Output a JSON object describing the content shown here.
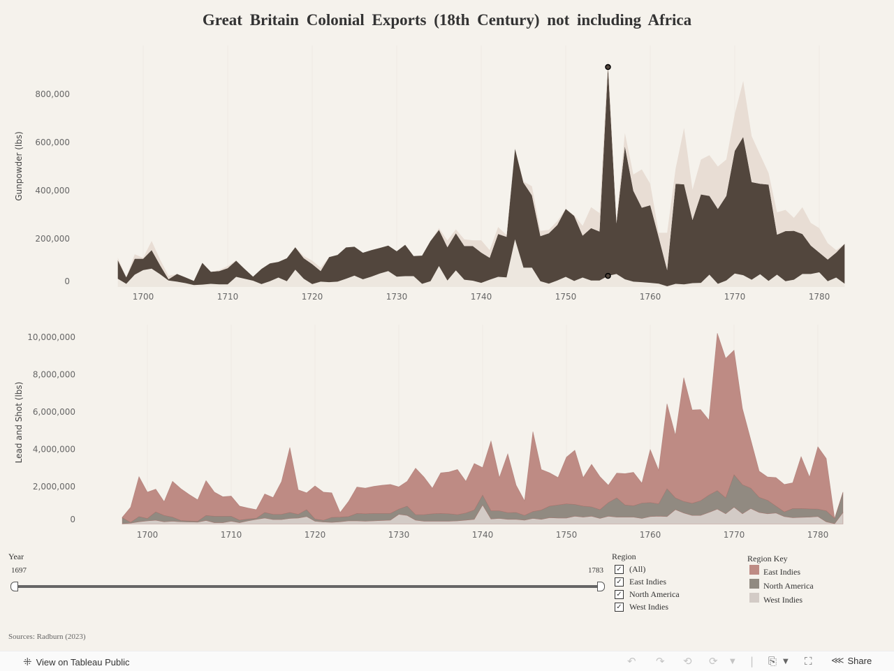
{
  "title": "Great Britain Colonial Exports (18th Century) not including Africa",
  "colors": {
    "background": "#f5f2ec",
    "gunpowder": {
      "West Indies": "#ede7df",
      "North America": "#52463d",
      "East Indies": "#e8ddd4"
    },
    "lead": {
      "West Indies": "#d3cbc6",
      "North America": "#918a81",
      "East Indies": "#be8b84"
    },
    "lead_outline": "#a06b64",
    "legend": {
      "East Indies": "#be8b84",
      "North America": "#918a81",
      "West Indies": "#d3cbc6"
    }
  },
  "chart_data": [
    {
      "type": "area",
      "stacked": true,
      "title": "",
      "xlabel": "",
      "ylabel": "Gunpowder (lbs)",
      "xlim": [
        1697,
        1783
      ],
      "ylim": [
        0,
        900000
      ],
      "x_ticks": [
        "1700",
        "1710",
        "1720",
        "1730",
        "1740",
        "1750",
        "1760",
        "1770",
        "1780"
      ],
      "y_ticks": [
        "0",
        "200,000",
        "400,000",
        "600,000",
        "800,000"
      ],
      "y_tick_values": [
        0,
        200000,
        400000,
        600000,
        800000
      ],
      "grid": false,
      "highlight_year": 1755,
      "series": [
        {
          "name": "West Indies",
          "values": [
            34000,
            13000,
            51000,
            70000,
            76000,
            53000,
            27000,
            22000,
            16000,
            8000,
            10000,
            13000,
            11000,
            11000,
            42000,
            34000,
            26000,
            12000,
            24000,
            39000,
            24000,
            72000,
            34000,
            12000,
            22000,
            20000,
            22000,
            34000,
            47000,
            32000,
            43000,
            56000,
            66000,
            43000,
            45000,
            45000,
            13000,
            24000,
            87000,
            27000,
            69000,
            30000,
            26000,
            17000,
            30000,
            42000,
            40000,
            198000,
            80000,
            80000,
            24000,
            14000,
            27000,
            42000,
            25000,
            39000,
            27000,
            27000,
            46000,
            54000,
            32000,
            22000,
            20000,
            17000,
            14000,
            3000,
            13000,
            11000,
            16000,
            17000,
            51000,
            13000,
            27000,
            56000,
            49000,
            30000,
            53000,
            25000,
            51000,
            24000,
            30000,
            54000,
            54000,
            61000,
            24000,
            39000,
            14000
          ]
        },
        {
          "name": "North America",
          "values": [
            77000,
            27000,
            66000,
            47000,
            77000,
            37000,
            5000,
            32000,
            24000,
            17000,
            90000,
            50000,
            55000,
            67000,
            67000,
            41000,
            17000,
            63000,
            74000,
            65000,
            95000,
            93000,
            85000,
            83000,
            44000,
            104000,
            111000,
            130000,
            120000,
            110000,
            110000,
            106000,
            106000,
            105000,
            130000,
            83000,
            117000,
            167000,
            150000,
            138000,
            154000,
            140000,
            144000,
            126000,
            91000,
            178000,
            168000,
            375000,
            353000,
            300000,
            187000,
            209000,
            230000,
            282000,
            270000,
            174000,
            217000,
            203000,
            867000,
            210000,
            551000,
            377000,
            309000,
            322000,
            192000,
            67000,
            415000,
            415000,
            262000,
            367000,
            327000,
            311000,
            351000,
            509000,
            574000,
            405000,
            375000,
            400000,
            166000,
            208000,
            203000,
            166000,
            118000,
            82000,
            90000,
            104000,
            165000
          ]
        },
        {
          "name": "East Indies",
          "values": [
            10000,
            0,
            19000,
            4000,
            38000,
            24000,
            14000,
            0,
            0,
            0,
            0,
            0,
            4000,
            9000,
            2000,
            0,
            0,
            0,
            0,
            0,
            0,
            0,
            9000,
            14000,
            14000,
            0,
            0,
            0,
            0,
            0,
            0,
            0,
            0,
            0,
            0,
            0,
            0,
            0,
            7000,
            28000,
            16000,
            28000,
            24000,
            51000,
            32000,
            29000,
            7000,
            0,
            5000,
            38000,
            22000,
            14000,
            16000,
            0,
            3000,
            41000,
            87000,
            77000,
            32000,
            9000,
            56000,
            68000,
            159000,
            89000,
            19000,
            155000,
            63000,
            234000,
            126000,
            145000,
            169000,
            176000,
            151000,
            153000,
            232000,
            191000,
            121000,
            48000,
            93000,
            88000,
            54000,
            111000,
            94000,
            101000,
            68000,
            10000,
            0
          ]
        }
      ]
    },
    {
      "type": "area",
      "stacked": true,
      "title": "",
      "xlabel": "",
      "ylabel": "Lead and Shot (lbs)",
      "xlim": [
        1697,
        1783
      ],
      "ylim": [
        0,
        10500000
      ],
      "x_ticks": [
        "1700",
        "1710",
        "1720",
        "1730",
        "1740",
        "1750",
        "1760",
        "1770",
        "1780"
      ],
      "y_ticks": [
        "0",
        "2,000,000",
        "4,000,000",
        "6,000,000",
        "8,000,000",
        "10,000,000"
      ],
      "y_tick_values": [
        0,
        2000000,
        4000000,
        6000000,
        8000000,
        10000000
      ],
      "grid": false,
      "series": [
        {
          "name": "West Indies",
          "values": [
            20000,
            50000,
            120000,
            170000,
            200000,
            120000,
            150000,
            120000,
            110000,
            100000,
            190000,
            70000,
            70000,
            150000,
            70000,
            170000,
            250000,
            320000,
            240000,
            240000,
            300000,
            320000,
            400000,
            150000,
            110000,
            90000,
            120000,
            170000,
            170000,
            150000,
            170000,
            190000,
            210000,
            520000,
            460000,
            210000,
            150000,
            150000,
            150000,
            150000,
            170000,
            210000,
            250000,
            1020000,
            270000,
            300000,
            250000,
            250000,
            210000,
            300000,
            250000,
            340000,
            320000,
            320000,
            420000,
            370000,
            420000,
            300000,
            420000,
            370000,
            370000,
            370000,
            300000,
            400000,
            420000,
            400000,
            770000,
            590000,
            460000,
            460000,
            620000,
            800000,
            550000,
            900000,
            550000,
            830000,
            620000,
            550000,
            590000,
            400000,
            340000,
            360000,
            370000,
            400000,
            120000,
            20000,
            620000
          ]
        },
        {
          "name": "North America",
          "values": [
            320000,
            40000,
            280000,
            130000,
            450000,
            340000,
            220000,
            70000,
            60000,
            50000,
            270000,
            350000,
            350000,
            270000,
            140000,
            100000,
            60000,
            300000,
            280000,
            280000,
            320000,
            200000,
            370000,
            120000,
            90000,
            270000,
            250000,
            230000,
            400000,
            400000,
            400000,
            380000,
            360000,
            280000,
            500000,
            290000,
            350000,
            400000,
            420000,
            400000,
            330000,
            380000,
            500000,
            530000,
            440000,
            410000,
            360000,
            370000,
            250000,
            370000,
            500000,
            620000,
            700000,
            760000,
            630000,
            590000,
            500000,
            470000,
            730000,
            1030000,
            650000,
            610000,
            820000,
            750000,
            660000,
            1490000,
            630000,
            620000,
            650000,
            790000,
            930000,
            990000,
            850000,
            1740000,
            1560000,
            1090000,
            810000,
            720000,
            370000,
            250000,
            490000,
            470000,
            440000,
            400000,
            590000,
            280000,
            1090000
          ]
        },
        {
          "name": "East Indies",
          "values": [
            20000,
            810000,
            2140000,
            1410000,
            1220000,
            740000,
            1920000,
            1700000,
            1410000,
            1150000,
            1870000,
            1290000,
            1040000,
            1080000,
            750000,
            590000,
            460000,
            990000,
            900000,
            1750000,
            3480000,
            1310000,
            900000,
            1770000,
            1510000,
            1310000,
            250000,
            810000,
            1410000,
            1370000,
            1450000,
            1510000,
            1550000,
            1190000,
            1330000,
            2490000,
            2020000,
            1370000,
            2170000,
            2240000,
            2420000,
            1700000,
            2490000,
            1470000,
            3740000,
            1780000,
            3150000,
            1460000,
            790000,
            4280000,
            2170000,
            1780000,
            1470000,
            2500000,
            2900000,
            1530000,
            2280000,
            1770000,
            930000,
            1330000,
            1680000,
            1790000,
            1070000,
            2840000,
            1810000,
            4550000,
            3360000,
            6630000,
            5000000,
            4880000,
            4020000,
            8430000,
            7470000,
            6670000,
            4080000,
            2590000,
            1400000,
            1250000,
            1530000,
            1470000,
            1380000,
            2780000,
            1710000,
            3340000,
            2800000,
            0,
            0
          ]
        }
      ]
    }
  ],
  "year_filter": {
    "label": "Year",
    "min_label": "1697",
    "max_label": "1783",
    "min": 1697,
    "max": 1783
  },
  "region_filter": {
    "label": "Region",
    "items": [
      {
        "label": "(All)",
        "checked": true
      },
      {
        "label": "East Indies",
        "checked": true
      },
      {
        "label": "North America",
        "checked": true
      },
      {
        "label": "West Indies",
        "checked": true
      }
    ],
    "check_glyph": "✓"
  },
  "region_key": {
    "label": "Region Key",
    "items": [
      "East Indies",
      "North America",
      "West Indies"
    ]
  },
  "sources": "Sources: Radburn (2023)",
  "toolbar": {
    "view_on_tableau": "View on Tableau Public",
    "share": "Share",
    "icons": [
      "tableau-logo-icon",
      "undo-icon",
      "redo-icon",
      "revert-icon",
      "refresh-icon",
      "download-icon",
      "fullscreen-icon",
      "share-icon"
    ]
  }
}
